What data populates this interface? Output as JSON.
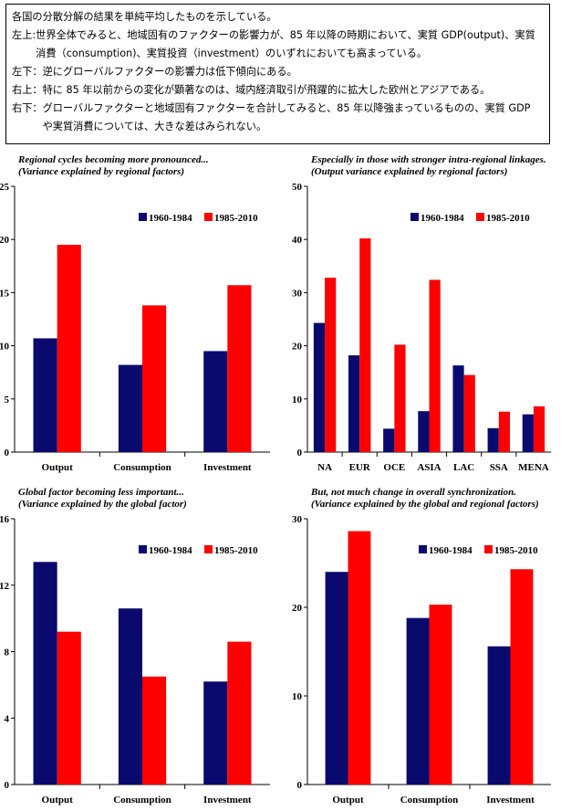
{
  "notes": {
    "intro": "各国の分散分解の結果を単純平均したものを示している。",
    "items": [
      {
        "key": "左上",
        "sep": ":",
        "text": "世界全体でみると、地域固有のファクターの影響力が、85 年以降の時期において、実質 GDP(output)、実質消費（consumption)、実質投資（investment）のいずれにおいても高まっている。"
      },
      {
        "key": "左下",
        "sep": "：",
        "text": "逆にグローバルファクターの影響力は低下傾向にある。"
      },
      {
        "key": "右上",
        "sep": "：",
        "text": "特に 85 年以前からの変化が顕著なのは、域内経済取引が飛躍的に拡大した欧州とアジアである。"
      },
      {
        "key": "右下",
        "sep": "：",
        "text": "グローバルファクターと地域固有ファクターを合計してみると、85 年以降強まっているものの、実質 GDP や実質消費については、大きな差はみられない。"
      }
    ]
  },
  "colors": {
    "series1": "#0a0a6e",
    "series2": "#ff0000",
    "axis": "#000000"
  },
  "chart_data": [
    {
      "type": "bar",
      "title": "Regional cycles becoming more pronounced...",
      "subtitle": "(Variance explained by regional factors)",
      "categories": [
        "Output",
        "Consumption",
        "Investment"
      ],
      "series": [
        {
          "name": "1960-1984",
          "values": [
            10.7,
            8.2,
            9.5
          ]
        },
        {
          "name": "1985-2010",
          "values": [
            19.5,
            13.8,
            15.7
          ]
        }
      ],
      "ylim": [
        0,
        25
      ],
      "yticks": [
        0,
        5,
        10,
        15,
        20,
        25
      ],
      "legend": "top-right"
    },
    {
      "type": "bar",
      "title": "Especially in those with stronger intra-regional linkages.",
      "subtitle": "(Output variance explained by  regional factors)",
      "categories": [
        "NA",
        "EUR",
        "OCE",
        "ASIA",
        "LAC",
        "SSA",
        "MENA"
      ],
      "series": [
        {
          "name": "1960-1984",
          "values": [
            24.3,
            18.2,
            4.4,
            7.7,
            16.3,
            4.5,
            7.1
          ]
        },
        {
          "name": "1985-2010",
          "values": [
            32.8,
            40.2,
            20.2,
            32.4,
            14.5,
            7.6,
            8.6
          ]
        }
      ],
      "ylim": [
        0,
        50
      ],
      "yticks": [
        0,
        10,
        20,
        30,
        40,
        50
      ],
      "legend": "top-right"
    },
    {
      "type": "bar",
      "title": "Global factor becoming less important...",
      "subtitle": "(Variance explained  by the global factor)",
      "categories": [
        "Output",
        "Consumption",
        "Investment"
      ],
      "series": [
        {
          "name": "1960-1984",
          "values": [
            13.4,
            10.6,
            6.2
          ]
        },
        {
          "name": "1985-2010",
          "values": [
            9.2,
            6.5,
            8.6
          ]
        }
      ],
      "ylim": [
        0,
        16
      ],
      "yticks": [
        0,
        4,
        8,
        12,
        16
      ],
      "legend": "top-right"
    },
    {
      "type": "bar",
      "title": "But, not much change in overall synchronization.",
      "subtitle": "(Variance explained by the global and regional factors)",
      "categories": [
        "Output",
        "Consumption",
        "Investment"
      ],
      "series": [
        {
          "name": "1960-1984",
          "values": [
            24.0,
            18.8,
            15.6
          ]
        },
        {
          "name": "1985-2010",
          "values": [
            28.6,
            20.3,
            24.3
          ]
        }
      ],
      "ylim": [
        0,
        30
      ],
      "yticks": [
        0,
        10,
        20,
        30
      ],
      "legend": "top-right"
    }
  ]
}
